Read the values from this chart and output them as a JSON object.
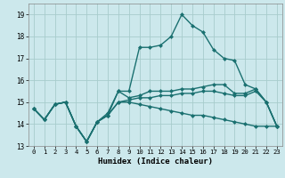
{
  "xlabel": "Humidex (Indice chaleur)",
  "xlim": [
    -0.5,
    23.5
  ],
  "ylim": [
    13.0,
    19.5
  ],
  "yticks": [
    13,
    14,
    15,
    16,
    17,
    18,
    19
  ],
  "xticks": [
    0,
    1,
    2,
    3,
    4,
    5,
    6,
    7,
    8,
    9,
    10,
    11,
    12,
    13,
    14,
    15,
    16,
    17,
    18,
    19,
    20,
    21,
    22,
    23
  ],
  "bg_color": "#cce8ec",
  "grid_color": "#a8cccc",
  "line_color": "#1a7070",
  "line1": [
    14.7,
    14.2,
    14.9,
    15.0,
    13.9,
    13.2,
    14.1,
    14.4,
    15.0,
    15.0,
    14.9,
    14.8,
    14.7,
    14.6,
    14.5,
    14.4,
    14.4,
    14.3,
    14.2,
    14.1,
    14.0,
    13.9,
    13.9,
    13.9
  ],
  "line2": [
    14.7,
    14.2,
    14.9,
    15.0,
    13.9,
    13.2,
    14.1,
    14.4,
    15.0,
    15.1,
    15.2,
    15.2,
    15.3,
    15.3,
    15.4,
    15.4,
    15.5,
    15.5,
    15.4,
    15.3,
    15.3,
    15.5,
    15.0,
    13.9
  ],
  "line3": [
    14.7,
    14.2,
    14.9,
    15.0,
    13.9,
    13.2,
    14.1,
    14.4,
    15.5,
    15.2,
    15.3,
    15.5,
    15.5,
    15.5,
    15.6,
    15.6,
    15.7,
    15.8,
    15.8,
    15.4,
    15.4,
    15.6,
    15.0,
    13.9
  ],
  "line4": [
    14.7,
    14.2,
    14.9,
    15.0,
    13.9,
    13.2,
    14.1,
    14.5,
    15.5,
    15.5,
    17.5,
    17.5,
    17.6,
    18.0,
    19.0,
    18.5,
    18.2,
    17.4,
    17.0,
    16.9,
    15.8,
    15.6,
    15.0,
    13.9
  ],
  "marker": "D",
  "marker_size": 2.5,
  "linewidth": 1.0
}
